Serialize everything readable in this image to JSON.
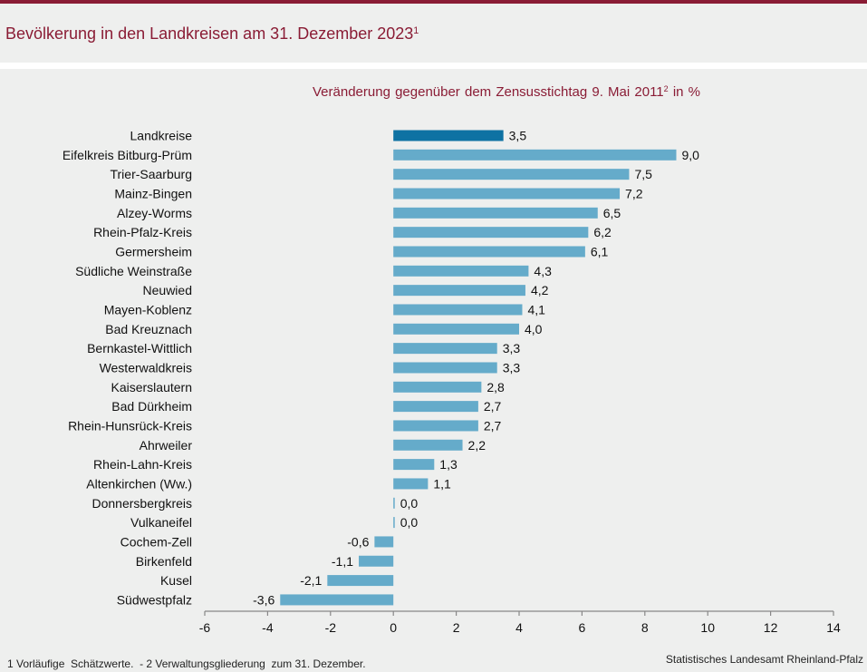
{
  "header": {
    "title": "Bevölkerung in den Landkreisen am 31. Dezember 2023",
    "title_sup": "1"
  },
  "footer": {
    "footnote": "1 Vorläufige  Schätzwerte.  - 2 Verwaltungsgliederung  zum 31. Dezember.",
    "source": "Statistisches Landesamt  Rheinland-Pfalz"
  },
  "colors": {
    "brand": "#8a1c35",
    "bar_highlight": "#0e72a3",
    "bar_default": "#65abca",
    "axis": "#888888"
  },
  "chart_data": {
    "type": "bar",
    "orientation": "horizontal",
    "title": "Veränderung gegenüber dem Zensusstichtag 9. Mai 2011² in %",
    "subtitle_main": "Veränderung  gegenüber  dem  Zensusstichtag  9. Mai 2011",
    "subtitle_sup": "2",
    "subtitle_tail": " in %",
    "xlabel": "",
    "ylabel": "",
    "xlim": [
      -6,
      14
    ],
    "xticks": [
      -6,
      -4,
      -2,
      0,
      2,
      4,
      6,
      8,
      10,
      12,
      14
    ],
    "grid": false,
    "categories": [
      "Landkreise",
      "Eifelkreis Bitburg-Prüm",
      "Trier-Saarburg",
      "Mainz-Bingen",
      "Alzey-Worms",
      "Rhein-Pfalz-Kreis",
      "Germersheim",
      "Südliche Weinstraße",
      "Neuwied",
      "Mayen-Koblenz",
      "Bad Kreuznach",
      "Bernkastel-Wittlich",
      "Westerwaldkreis",
      "Kaiserslautern",
      "Bad Dürkheim",
      "Rhein-Hunsrück-Kreis",
      "Ahrweiler",
      "Rhein-Lahn-Kreis",
      "Altenkirchen (Ww.)",
      "Donnersbergkreis",
      "Vulkaneifel",
      "Cochem-Zell",
      "Birkenfeld",
      "Kusel",
      "Südwestpfalz"
    ],
    "values": [
      3.5,
      9.0,
      7.5,
      7.2,
      6.5,
      6.2,
      6.1,
      4.3,
      4.2,
      4.1,
      4.0,
      3.3,
      3.3,
      2.8,
      2.7,
      2.7,
      2.2,
      1.3,
      1.1,
      0.0,
      0.0,
      -0.6,
      -1.1,
      -2.1,
      -3.6
    ],
    "value_labels": [
      "3,5",
      "9,0",
      "7,5",
      "7,2",
      "6,5",
      "6,2",
      "6,1",
      "4,3",
      "4,2",
      "4,1",
      "4,0",
      "3,3",
      "3,3",
      "2,8",
      "2,7",
      "2,7",
      "2,2",
      "1,3",
      "1,1",
      "0,0",
      "0,0",
      "-0,6",
      "-1,1",
      "-2,1",
      "-3,6"
    ],
    "highlight_index": 0
  }
}
